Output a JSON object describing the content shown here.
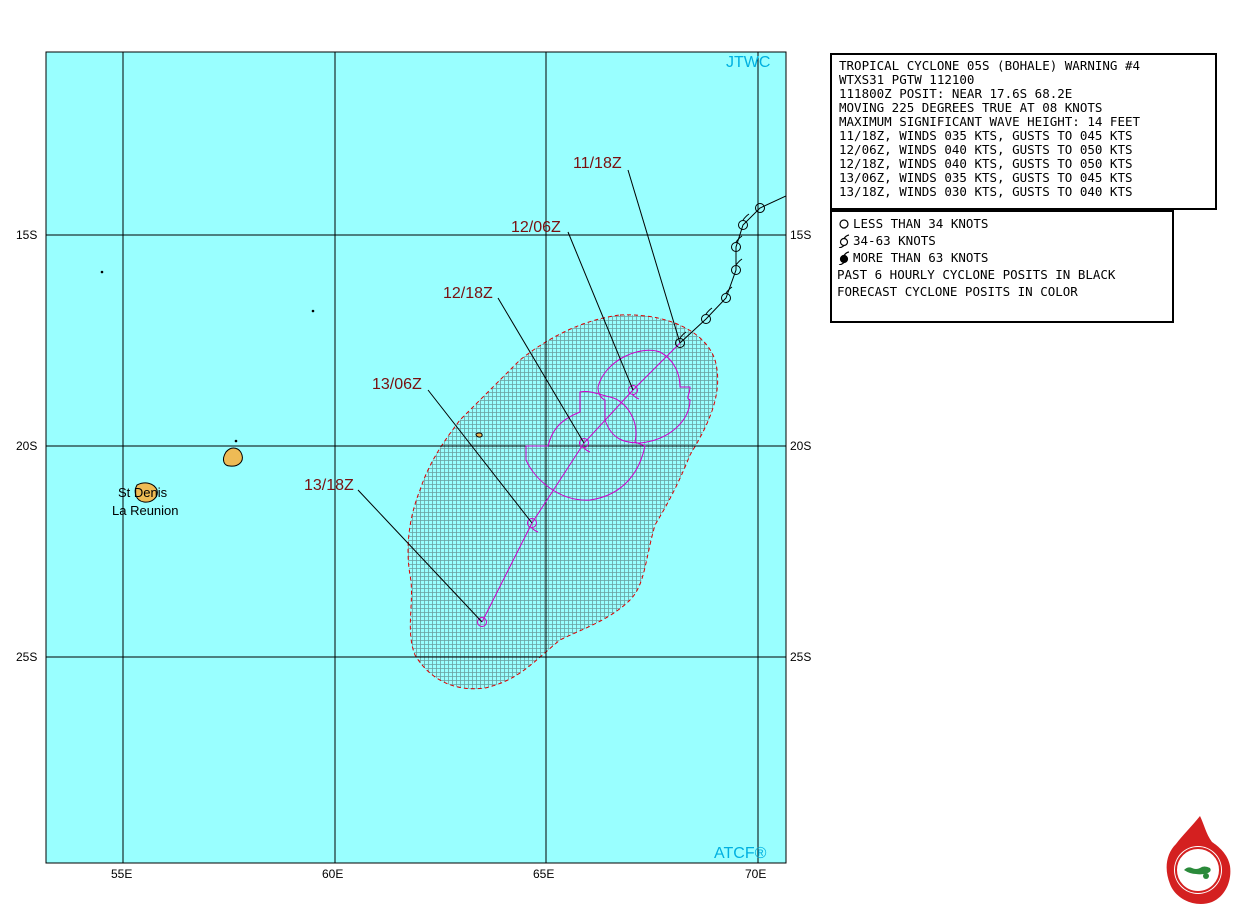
{
  "map": {
    "brand_top": "JTWC",
    "brand_bottom": "ATCF®",
    "ocean_color": "#99ffff",
    "land_color": "#eebb55",
    "track_color": "#cc00cc",
    "danger_color": "#dd0000",
    "lat_labels": [
      "15S",
      "20S",
      "25S"
    ],
    "lon_labels": [
      "55E",
      "60E",
      "65E",
      "70E"
    ],
    "places": {
      "city": "St Denis",
      "island": "La Reunion"
    }
  },
  "forecast_labels": [
    "11/18Z",
    "12/06Z",
    "12/18Z",
    "13/06Z",
    "13/18Z"
  ],
  "warning": {
    "lines": [
      "TROPICAL CYCLONE 05S (BOHALE) WARNING #4",
      "WTXS31 PGTW 112100",
      "111800Z POSIT: NEAR 17.6S 68.2E",
      "MOVING 225 DEGREES TRUE AT 08 KNOTS",
      "MAXIMUM SIGNIFICANT WAVE HEIGHT: 14 FEET",
      "11/18Z, WINDS 035 KTS, GUSTS TO 045 KTS",
      "12/06Z, WINDS 040 KTS, GUSTS TO 050 KTS",
      "12/18Z, WINDS 040 KTS, GUSTS TO 050 KTS",
      "13/06Z, WINDS 035 KTS, GUSTS TO 045 KTS",
      "13/18Z, WINDS 030 KTS, GUSTS TO 040 KTS"
    ]
  },
  "legend": {
    "items": [
      {
        "symbol": "open-circle-icon",
        "text": "LESS THAN 34 KNOTS"
      },
      {
        "symbol": "open-cyclone-icon",
        "text": "34-63 KNOTS"
      },
      {
        "symbol": "filled-cyclone-icon",
        "text": "MORE THAN 63 KNOTS"
      }
    ],
    "notes": [
      "PAST 6 HOURLY CYCLONE POSITS IN BLACK",
      "FORECAST CYCLONE POSITS IN COLOR"
    ]
  }
}
